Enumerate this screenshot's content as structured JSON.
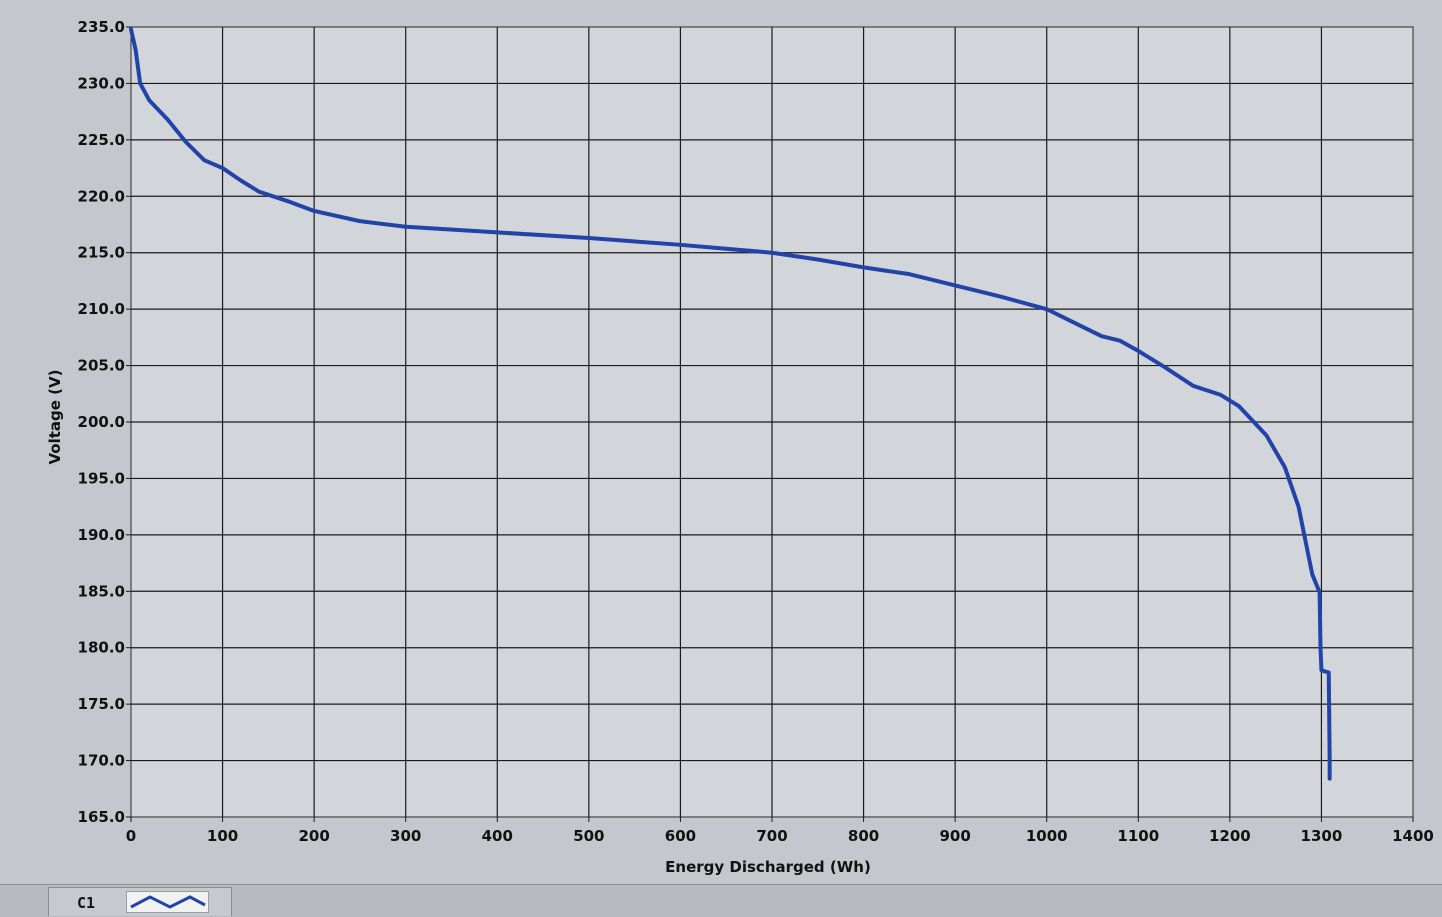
{
  "chart_data": {
    "type": "line",
    "xlabel": "Energy Discharged (Wh)",
    "ylabel": "Voltage (V)",
    "xlim": [
      0,
      1400
    ],
    "ylim": [
      165,
      235
    ],
    "x_ticks": [
      "0",
      "100",
      "200",
      "300",
      "400",
      "500",
      "600",
      "700",
      "800",
      "900",
      "1000",
      "1100",
      "1200",
      "1300",
      "1400"
    ],
    "y_ticks": [
      "165.0",
      "170.0",
      "175.0",
      "180.0",
      "185.0",
      "190.0",
      "195.0",
      "200.0",
      "205.0",
      "210.0",
      "215.0",
      "220.0",
      "225.0",
      "230.0",
      "235.0"
    ],
    "grid": true,
    "series": [
      {
        "name": "C1",
        "color": "#2244a8",
        "x": [
          0,
          5,
          10,
          20,
          40,
          60,
          80,
          100,
          120,
          140,
          170,
          200,
          250,
          300,
          400,
          500,
          600,
          700,
          750,
          800,
          850,
          900,
          950,
          1000,
          1030,
          1060,
          1080,
          1100,
          1130,
          1160,
          1190,
          1210,
          1240,
          1260,
          1275,
          1285,
          1290,
          1298,
          1299,
          1300,
          1308,
          1309,
          1309
        ],
        "y": [
          234.8,
          233.0,
          230.0,
          228.5,
          226.8,
          224.8,
          223.2,
          222.5,
          221.4,
          220.4,
          219.6,
          218.7,
          217.8,
          217.3,
          216.8,
          216.3,
          215.7,
          215.0,
          214.4,
          213.7,
          213.1,
          212.1,
          211.1,
          210.0,
          208.8,
          207.6,
          207.2,
          206.3,
          204.8,
          203.2,
          202.4,
          201.4,
          198.8,
          196.0,
          192.5,
          188.5,
          186.5,
          184.9,
          180.0,
          178.0,
          177.8,
          170.0,
          168.4
        ]
      }
    ]
  },
  "legend": {
    "label": "C1"
  }
}
